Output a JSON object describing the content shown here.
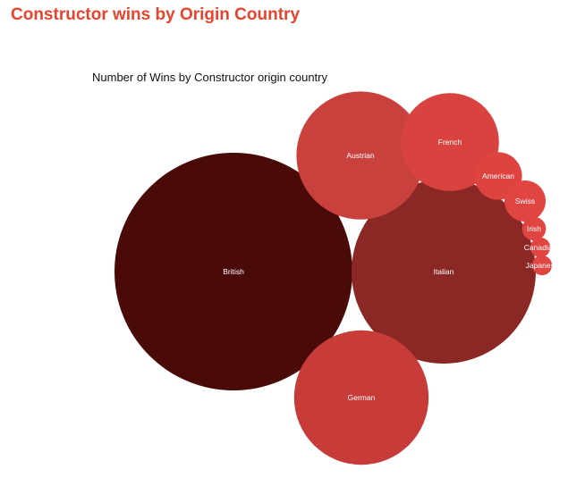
{
  "page": {
    "title": "Constructor wins by Origin Country"
  },
  "chart_data": {
    "type": "bubble",
    "title": "Number of Wins by Constructor origin country",
    "series": [
      {
        "category": "British",
        "value": 10,
        "color": "#4a0a08"
      },
      {
        "category": "Italian",
        "value": 6,
        "color": "#8b2725"
      },
      {
        "category": "German",
        "value": 3.2,
        "color": "#c73c38"
      },
      {
        "category": "Austrian",
        "value": 2.9,
        "color": "#c9413c"
      },
      {
        "category": "French",
        "value": 1.7,
        "color": "#d8433f"
      },
      {
        "category": "American",
        "value": 0.4,
        "color": "#df4340"
      },
      {
        "category": "Swiss",
        "value": 0.3,
        "color": "#e04542"
      },
      {
        "category": "Irish",
        "value": 0.1,
        "color": "#e04542"
      },
      {
        "category": "Canadian",
        "value": 0.07,
        "color": "#e04542"
      },
      {
        "category": "Japanese",
        "value": 0.07,
        "color": "#e04542"
      }
    ]
  }
}
